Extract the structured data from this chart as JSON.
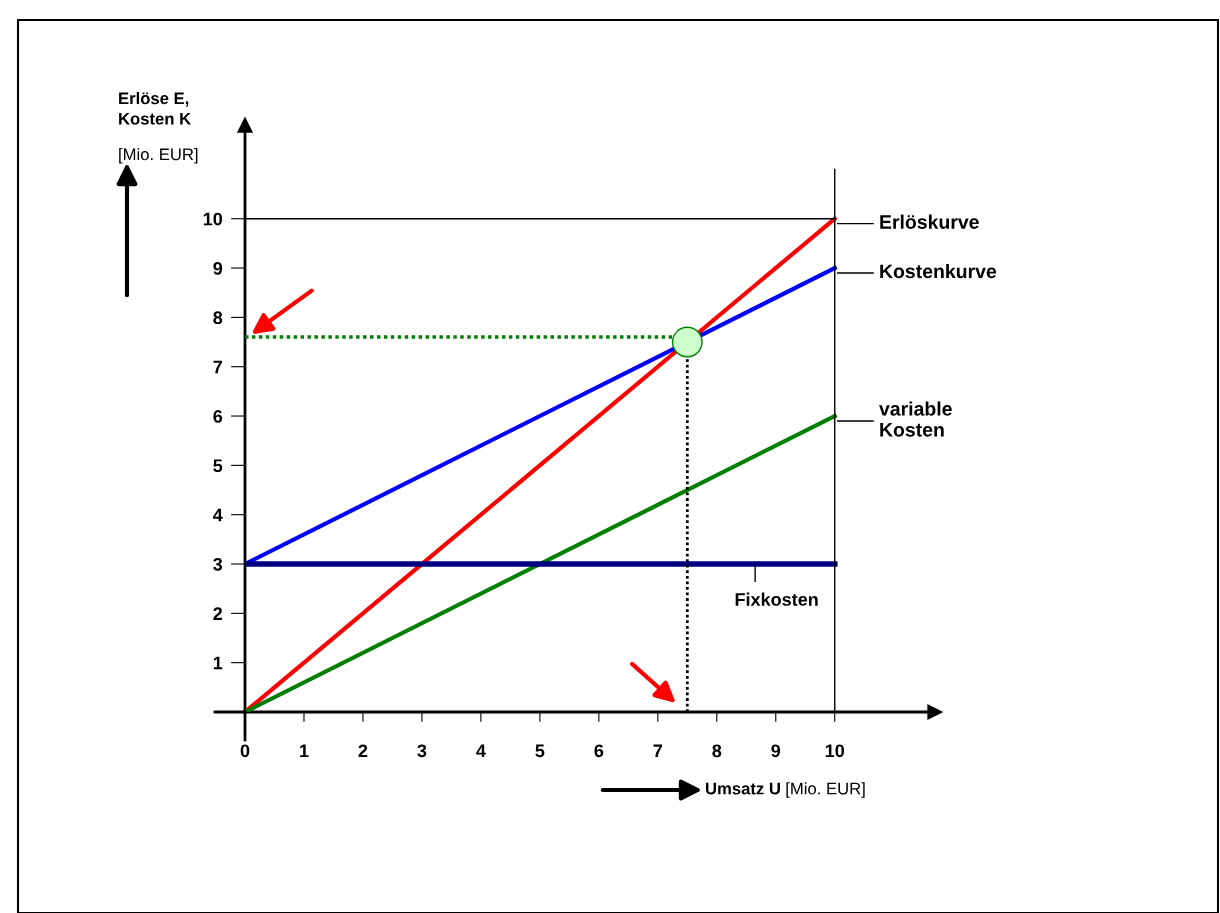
{
  "chart_data": {
    "type": "line",
    "xlabel": "Umsatz U [Mio. EUR]",
    "ylabel": "Erlöse E,\nKosten K\n[Mio. EUR]",
    "xlim": [
      0,
      11.7
    ],
    "ylim": [
      0,
      11.9
    ],
    "xticks": [
      0,
      1,
      2,
      3,
      4,
      5,
      6,
      7,
      8,
      9,
      10
    ],
    "yticks": [
      1,
      2,
      3,
      4,
      5,
      6,
      7,
      8,
      9,
      10
    ],
    "grid": false,
    "series": [
      {
        "name": "Erlöskurve",
        "color": "#ff0000",
        "x": [
          0,
          10
        ],
        "values": [
          0,
          10
        ]
      },
      {
        "name": "Kostenkurve",
        "color": "#0000ff",
        "x": [
          0,
          10
        ],
        "values": [
          3,
          9
        ]
      },
      {
        "name": "variable\nKosten",
        "color": "#008000",
        "x": [
          0,
          10
        ],
        "values": [
          0,
          6
        ]
      },
      {
        "name": "Fixkosten",
        "color": "#000080",
        "x": [
          0,
          10
        ],
        "values": [
          3,
          3
        ]
      },
      {
        "color": "#008000",
        "x": [
          0,
          7.3
        ],
        "values": [
          7.6,
          7.6
        ],
        "line_style": "dotted"
      },
      {
        "color": "#000000",
        "x": [
          7.5,
          7.5
        ],
        "values": [
          0,
          7.2
        ],
        "line_style": "dotted"
      },
      {
        "type": "scatter",
        "color": "#ccffcc",
        "x": [
          7.5
        ],
        "values": [
          7.5
        ],
        "marker": "circle"
      },
      {
        "color": "#000000",
        "x": [
          10,
          10
        ],
        "values": [
          0,
          11
        ]
      },
      {
        "color": "#000000",
        "x": [
          0,
          10
        ],
        "values": [
          10,
          10
        ]
      }
    ]
  }
}
